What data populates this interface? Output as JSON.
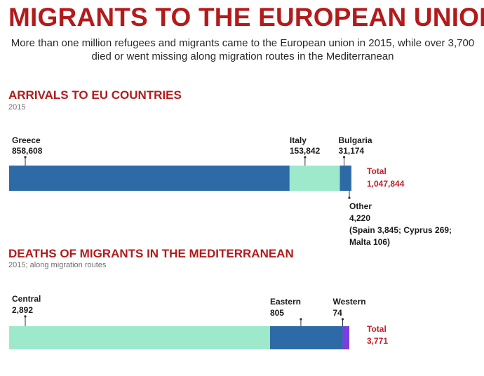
{
  "title": "MIGRANTS TO THE EUROPEAN UNION",
  "subtitle": "More than one million refugees and migrants came to the European union in 2015, while over 3,700 died or went missing along migration routes in the Mediterranean",
  "colors": {
    "title": "#b31b1b",
    "total": "#c0222a"
  },
  "chart_data": [
    {
      "type": "bar",
      "orientation": "horizontal-stacked",
      "title": "ARRIVALS TO EU COUNTRIES",
      "subtitle": "2015",
      "categories": [
        "Greece",
        "Italy",
        "Bulgaria",
        "Other"
      ],
      "values": [
        858608,
        153842,
        31174,
        4220
      ],
      "value_labels": [
        "858,608",
        "153,842",
        "31,174",
        "4,220"
      ],
      "colors": [
        "#2e6aa6",
        "#9ee9cc",
        "#2e6aa6",
        "#2e6aa6"
      ],
      "note": "(Spain 3,845; Cyprus 269; Malta 106)",
      "total_label": "Total",
      "total_value": "1,047,844"
    },
    {
      "type": "bar",
      "orientation": "horizontal-stacked",
      "title": "DEATHS OF MIGRANTS IN THE MEDITERRANEAN",
      "subtitle": "2015; along migration routes",
      "categories": [
        "Central",
        "Eastern",
        "Western"
      ],
      "values": [
        2892,
        805,
        74
      ],
      "value_labels": [
        "2,892",
        "805",
        "74"
      ],
      "colors": [
        "#9ee9cc",
        "#2e6aa6",
        "#7b3fe0"
      ],
      "total_label": "Total",
      "total_value": "3,771"
    }
  ]
}
